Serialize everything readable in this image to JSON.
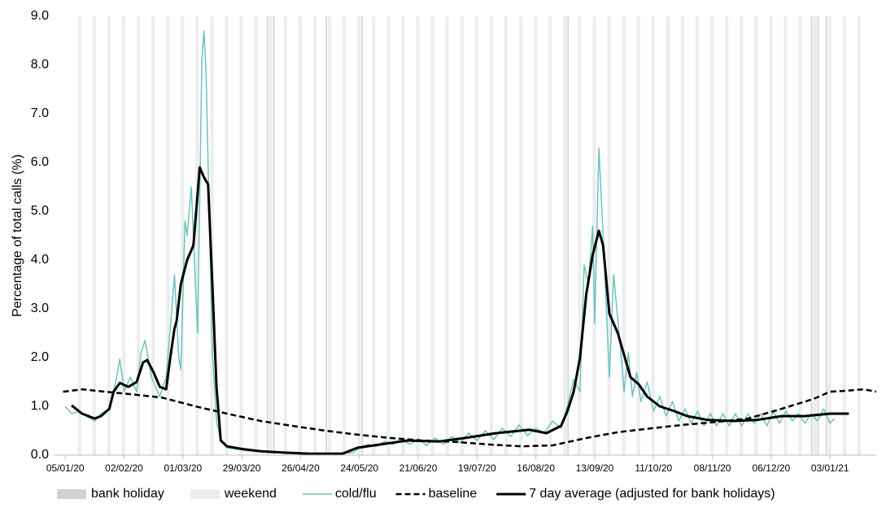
{
  "chart_data": {
    "type": "line",
    "y_label": "Percentage of total calls (%)",
    "xlim": [
      -5.5,
      386
    ],
    "ylim": [
      0,
      9
    ],
    "xticks": [
      {
        "value": 0,
        "label": "05/01/20"
      },
      {
        "value": 28,
        "label": "02/02/20"
      },
      {
        "value": 56,
        "label": "01/03/20"
      },
      {
        "value": 84,
        "label": "29/03/20"
      },
      {
        "value": 112,
        "label": "26/04/20"
      },
      {
        "value": 140,
        "label": "24/05/20"
      },
      {
        "value": 168,
        "label": "21/06/20"
      },
      {
        "value": 196,
        "label": "19/07/20"
      },
      {
        "value": 224,
        "label": "16/08/20"
      },
      {
        "value": 252,
        "label": "13/09/20"
      },
      {
        "value": 280,
        "label": "11/10/20"
      },
      {
        "value": 308,
        "label": "08/11/20"
      },
      {
        "value": 336,
        "label": "06/12/20"
      },
      {
        "value": 364,
        "label": "03/01/21"
      }
    ],
    "yticks": [
      {
        "value": 0,
        "label": "0.0"
      },
      {
        "value": 1,
        "label": "1.0"
      },
      {
        "value": 2,
        "label": "2.0"
      },
      {
        "value": 3,
        "label": "3.0"
      },
      {
        "value": 4,
        "label": "4.0"
      },
      {
        "value": 5,
        "label": "5.0"
      },
      {
        "value": 6,
        "label": "6.0"
      },
      {
        "value": 7,
        "label": "7.0"
      },
      {
        "value": 8,
        "label": "8.0"
      },
      {
        "value": 9,
        "label": "9.0"
      }
    ],
    "bands": [
      {
        "name": "bank holiday",
        "color": "#d2d2d2",
        "x": [
          96,
          99,
          124,
          141,
          239,
          355,
          358,
          362
        ]
      },
      {
        "name": "weekend",
        "color": "#ededed",
        "x": [
          6,
          13,
          20,
          27,
          34,
          41,
          48,
          55,
          62,
          69,
          76,
          83,
          90,
          97,
          104,
          111,
          118,
          125,
          132,
          139,
          146,
          153,
          160,
          167,
          174,
          181,
          188,
          195,
          202,
          209,
          216,
          223,
          230,
          237,
          244,
          251,
          258,
          265,
          272,
          279,
          286,
          293,
          300,
          307,
          314,
          321,
          328,
          335,
          342,
          349,
          356,
          363,
          370,
          377
        ]
      }
    ],
    "series": [
      {
        "name": "cold/flu",
        "color": "#6cc3bd",
        "style": "solid",
        "x": [
          0,
          3,
          7,
          10,
          14,
          17,
          21,
          24,
          26,
          28,
          31,
          34,
          36,
          38,
          41,
          45,
          48,
          50,
          52,
          54,
          55,
          57,
          58,
          60,
          63,
          65,
          66,
          67,
          70,
          72,
          74,
          77,
          81,
          85,
          90,
          95,
          100,
          110,
          120,
          130,
          137,
          140,
          144,
          148,
          152,
          156,
          160,
          164,
          168,
          172,
          176,
          180,
          184,
          188,
          192,
          196,
          200,
          204,
          208,
          212,
          216,
          220,
          224,
          228,
          232,
          236,
          239,
          242,
          245,
          247,
          249,
          251,
          252,
          254,
          256,
          259,
          261,
          264,
          266,
          268,
          270,
          272,
          274,
          277,
          280,
          283,
          286,
          289,
          292,
          295,
          298,
          301,
          304,
          307,
          310,
          313,
          316,
          319,
          322,
          325,
          328,
          331,
          334,
          337,
          340,
          343,
          346,
          349,
          352,
          355,
          358,
          361,
          364,
          366
        ],
        "values": [
          1.0,
          0.85,
          0.9,
          0.8,
          0.7,
          0.85,
          0.95,
          1.5,
          1.97,
          1.3,
          1.6,
          1.3,
          2.1,
          2.35,
          1.6,
          1.2,
          1.6,
          2.6,
          3.7,
          2.0,
          1.75,
          4.8,
          4.5,
          5.5,
          2.5,
          8.1,
          8.7,
          7.9,
          2.1,
          0.7,
          0.3,
          0.15,
          0.12,
          0.1,
          0.08,
          0.06,
          0.05,
          0.04,
          0.03,
          0.03,
          0.05,
          0.15,
          0.22,
          0.18,
          0.28,
          0.22,
          0.32,
          0.22,
          0.33,
          0.2,
          0.35,
          0.22,
          0.38,
          0.25,
          0.45,
          0.3,
          0.5,
          0.32,
          0.55,
          0.38,
          0.62,
          0.4,
          0.55,
          0.45,
          0.7,
          0.55,
          1.0,
          1.55,
          1.3,
          3.9,
          3.5,
          4.7,
          2.7,
          6.3,
          4.5,
          1.6,
          3.7,
          2.3,
          1.3,
          2.1,
          1.2,
          1.7,
          1.1,
          1.5,
          0.9,
          1.2,
          0.8,
          1.1,
          0.7,
          0.95,
          0.65,
          0.9,
          0.6,
          0.85,
          0.6,
          0.85,
          0.6,
          0.85,
          0.6,
          0.85,
          0.65,
          0.85,
          0.6,
          0.9,
          0.65,
          0.9,
          0.7,
          0.85,
          0.65,
          0.85,
          0.7,
          0.95,
          0.65,
          0.75
        ]
      },
      {
        "name": "baseline",
        "color": "#000000",
        "style": "dashed",
        "x": [
          -1,
          8,
          19,
          31,
          46,
          62,
          77,
          93,
          108,
          124,
          139,
          155,
          170,
          186,
          201,
          217,
          232,
          248,
          263,
          279,
          294,
          310,
          325,
          341,
          356,
          364,
          372,
          380,
          386
        ],
        "values": [
          1.3,
          1.35,
          1.3,
          1.25,
          1.18,
          1.0,
          0.85,
          0.7,
          0.6,
          0.5,
          0.42,
          0.35,
          0.3,
          0.27,
          0.22,
          0.18,
          0.2,
          0.35,
          0.47,
          0.55,
          0.62,
          0.68,
          0.75,
          0.95,
          1.15,
          1.3,
          1.32,
          1.35,
          1.3
        ]
      },
      {
        "name": "7 day average (adjusted for bank holidays)",
        "color": "#000000",
        "style": "solid",
        "x": [
          3,
          8,
          14,
          17,
          21,
          23,
          26,
          30,
          34,
          37,
          39,
          42,
          45,
          48,
          50,
          52,
          53,
          55,
          58,
          61,
          64,
          66,
          68,
          70,
          72,
          74,
          77,
          85,
          93,
          105,
          116,
          132,
          139,
          147,
          155,
          163,
          178,
          190,
          205,
          221,
          229,
          236,
          239,
          242,
          245,
          248,
          251,
          254,
          256,
          259,
          263,
          269,
          273,
          277,
          283,
          290,
          296,
          306,
          318,
          329,
          341,
          352,
          364,
          373
        ],
        "values": [
          1.02,
          0.85,
          0.75,
          0.8,
          0.95,
          1.3,
          1.48,
          1.4,
          1.5,
          1.9,
          1.95,
          1.7,
          1.4,
          1.35,
          2.0,
          2.6,
          2.75,
          3.5,
          4.0,
          4.3,
          5.9,
          5.7,
          5.55,
          3.5,
          1.4,
          0.3,
          0.18,
          0.12,
          0.08,
          0.05,
          0.03,
          0.03,
          0.15,
          0.2,
          0.25,
          0.3,
          0.28,
          0.35,
          0.45,
          0.52,
          0.45,
          0.6,
          0.9,
          1.3,
          2.0,
          3.3,
          4.1,
          4.6,
          4.3,
          2.9,
          2.5,
          1.6,
          1.45,
          1.2,
          1.0,
          0.9,
          0.8,
          0.72,
          0.7,
          0.72,
          0.8,
          0.8,
          0.85,
          0.85
        ]
      }
    ]
  }
}
